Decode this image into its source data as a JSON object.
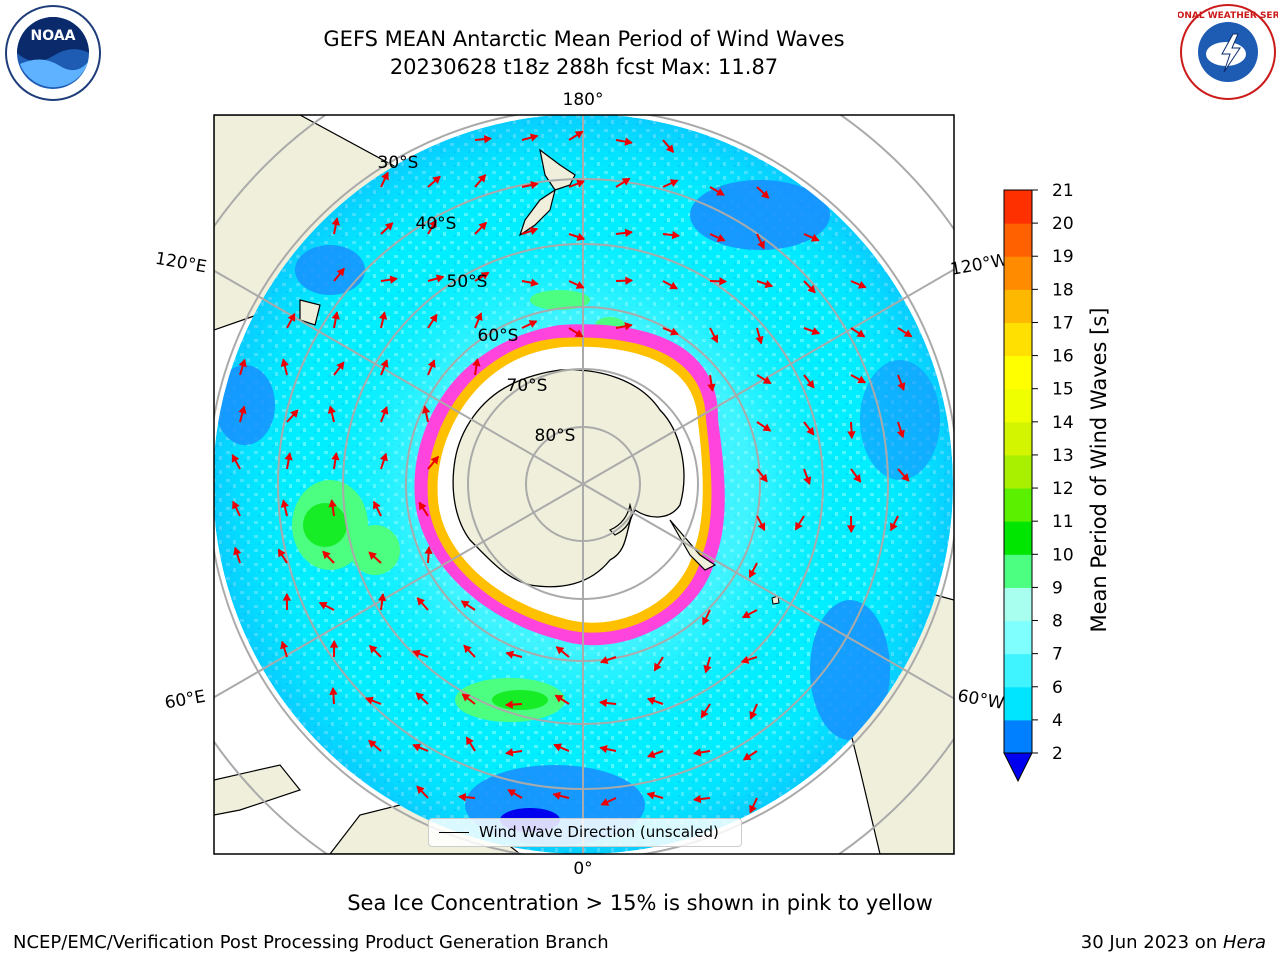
{
  "header": {
    "title": "GEFS MEAN Antarctic Mean Period of Wind Waves",
    "subtitle": "20230628 t18z 288h fcst   Max: 11.87"
  },
  "map": {
    "projection": "south-polar-stereographic",
    "lon_labels": [
      "180°",
      "120°E",
      "120°W",
      "60°E",
      "60°W",
      "0°"
    ],
    "lat_labels": [
      "30°S",
      "40°S",
      "50°S",
      "60°S",
      "70°S",
      "80°S"
    ],
    "legend_label": "Wind Wave Direction (unscaled)",
    "arrow_color": "#ee0000",
    "land_color": "#efefdb",
    "ice_colors": [
      "#ff44dd",
      "#ffc000",
      "#ffffff"
    ]
  },
  "colorbar": {
    "label": "Mean Period of Wind Waves [s]",
    "ticks": [
      "2",
      "4",
      "6",
      "7",
      "8",
      "9",
      "10",
      "11",
      "12",
      "13",
      "14",
      "15",
      "16",
      "17",
      "18",
      "19",
      "20",
      "21"
    ],
    "colors": [
      "#0080ff",
      "#00e5ff",
      "#40f4ff",
      "#80ffff",
      "#a8fff0",
      "#4dff80",
      "#00e600",
      "#5af000",
      "#a8f000",
      "#d4f500",
      "#f0ff00",
      "#ffff00",
      "#ffe000",
      "#ffb800",
      "#ff8c00",
      "#ff6000",
      "#ff3000",
      "#ff0000"
    ],
    "under_color": "#0000ee"
  },
  "sea_ice_note": "Sea Ice Concentration > 15% is shown in pink to yellow",
  "footer": {
    "left": "NCEP/EMC/Verification Post Processing Product Generation Branch",
    "right_prefix": "30 Jun 2023 on ",
    "right_host": "Hera"
  },
  "logos": {
    "noaa": "NOAA",
    "nws": "NATIONAL WEATHER SERVICE"
  }
}
